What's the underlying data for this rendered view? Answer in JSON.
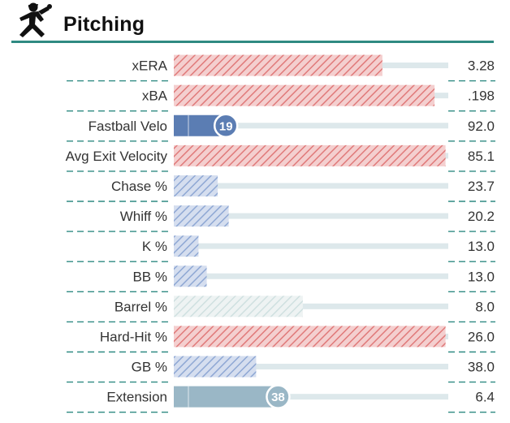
{
  "header": {
    "title": "Pitching",
    "icon": "baseball-pitcher-icon"
  },
  "colors": {
    "rule": "#2f8a82",
    "red": "#e07a7a",
    "blue": "#6e8fc4",
    "pale": "#c3d3db",
    "track": "#dde8eb",
    "solid_velo": "#5b7db3",
    "solid_ext": "#9ab7c6"
  },
  "chart_data": {
    "type": "bar",
    "title": "Pitching",
    "xlim": [
      0,
      100
    ],
    "metrics": [
      {
        "label": "xERA",
        "value": "3.28",
        "percentile": 76,
        "style": "hatch",
        "tone": "red"
      },
      {
        "label": "xBA",
        "value": ".198",
        "percentile": 95,
        "style": "hatch",
        "tone": "red"
      },
      {
        "label": "Fastball Velo",
        "value": "92.0",
        "percentile": 19,
        "style": "solid",
        "tone": "velo",
        "badge": "19"
      },
      {
        "label": "Avg Exit Velocity",
        "value": "85.1",
        "percentile": 99,
        "style": "hatch",
        "tone": "red"
      },
      {
        "label": "Chase %",
        "value": "23.7",
        "percentile": 16,
        "style": "hatch",
        "tone": "blue"
      },
      {
        "label": "Whiff %",
        "value": "20.2",
        "percentile": 20,
        "style": "hatch",
        "tone": "blue"
      },
      {
        "label": "K %",
        "value": "13.0",
        "percentile": 9,
        "style": "hatch",
        "tone": "blue"
      },
      {
        "label": "BB %",
        "value": "13.0",
        "percentile": 12,
        "style": "hatch",
        "tone": "blue"
      },
      {
        "label": "Barrel %",
        "value": "8.0",
        "percentile": 47,
        "style": "hatch",
        "tone": "pale"
      },
      {
        "label": "Hard-Hit %",
        "value": "26.0",
        "percentile": 99,
        "style": "hatch",
        "tone": "red"
      },
      {
        "label": "GB %",
        "value": "38.0",
        "percentile": 30,
        "style": "hatch",
        "tone": "blue"
      },
      {
        "label": "Extension",
        "value": "6.4",
        "percentile": 38,
        "style": "solid",
        "tone": "ext",
        "badge": "38"
      }
    ]
  }
}
